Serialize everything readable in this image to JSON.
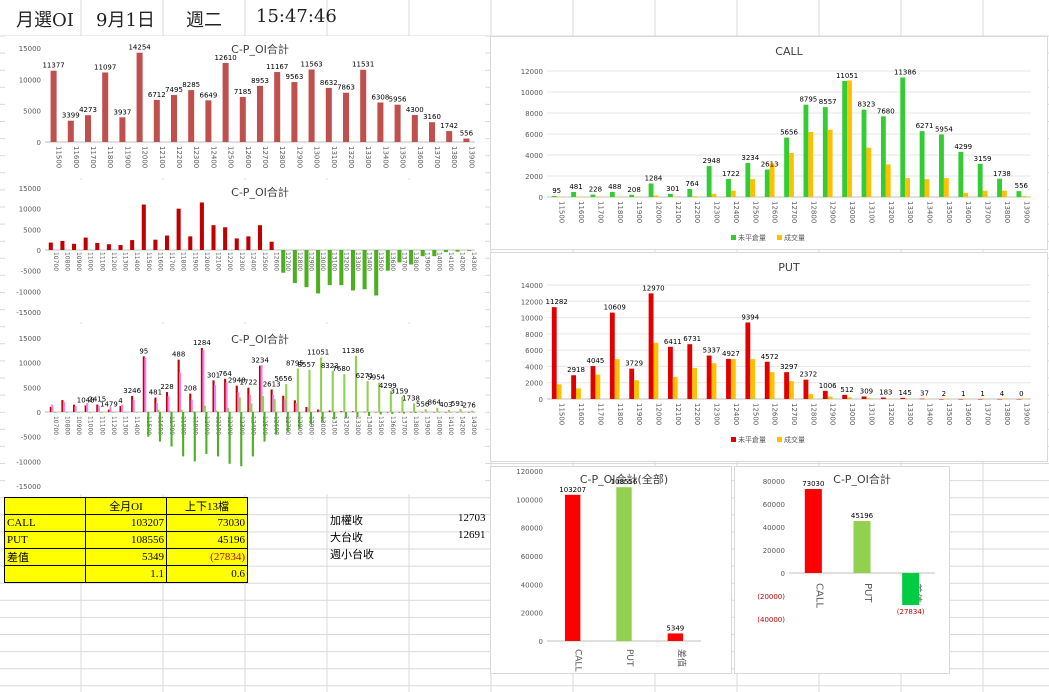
{
  "header": {
    "title": "月選OI",
    "date": "9月1日",
    "weekday": "週二",
    "time": "15:47:46"
  },
  "summary_table": {
    "col_headers": [
      "",
      "全月OI",
      "上下13檔"
    ],
    "rows": [
      {
        "label": "CALL",
        "v1": "103207",
        "v2": "73030"
      },
      {
        "label": "PUT",
        "v1": "108556",
        "v2": "45196"
      },
      {
        "label": "差值",
        "v1": "5349",
        "v2": "(27834)"
      },
      {
        "label": "",
        "v1": "1.1",
        "v2": "0.6"
      }
    ]
  },
  "side_values": [
    {
      "label": "加權收",
      "value": "12703"
    },
    {
      "label": "大台收",
      "value": "12691"
    },
    {
      "label": "週小台收",
      "value": ""
    }
  ],
  "chart_data": [
    {
      "type": "bar",
      "title": "C-P_OI合計",
      "categories": [
        "11500",
        "11600",
        "11700",
        "11800",
        "11900",
        "12000",
        "12100",
        "12200",
        "12300",
        "12400",
        "12500",
        "12600",
        "12700",
        "12800",
        "12900",
        "13000",
        "13100",
        "13200",
        "13300",
        "13400",
        "13500",
        "13600",
        "13700",
        "13800",
        "13900"
      ],
      "values": [
        11377,
        3399,
        4273,
        11097,
        3937,
        14254,
        6712,
        7495,
        8285,
        6649,
        12610,
        7185,
        8953,
        11167,
        9563,
        11563,
        8632,
        7863,
        11531,
        6308,
        5956,
        4300,
        3160,
        1742,
        556
      ],
      "ylim": [
        0,
        15000
      ],
      "yticks": [
        "15000",
        "10000",
        "5000",
        "0"
      ],
      "color": "#c0504d"
    },
    {
      "type": "bar",
      "title": "C-P_OI合計",
      "categories": [
        "10700",
        "10800",
        "10900",
        "11000",
        "11100",
        "11200",
        "11300",
        "11400",
        "11500",
        "11600",
        "11700",
        "11800",
        "11900",
        "12000",
        "12100",
        "12200",
        "12300",
        "12400",
        "12500",
        "12600",
        "12700",
        "12800",
        "12900",
        "13000",
        "13100",
        "13200",
        "13300",
        "13400",
        "13500",
        "13600",
        "13700",
        "13800",
        "13900",
        "14000",
        "14100",
        "14200",
        "14300"
      ],
      "values": [
        1800,
        2200,
        1500,
        3000,
        1700,
        1400,
        1200,
        2400,
        11000,
        2500,
        3500,
        10000,
        3300,
        11500,
        6000,
        5500,
        2800,
        3300,
        6000,
        2000,
        -5500,
        -8000,
        -9000,
        -10500,
        -8500,
        -8500,
        -9800,
        -9500,
        -11000,
        -5000,
        -3000,
        -3500,
        -1500,
        -1500,
        -500,
        -400,
        -200
      ],
      "ylim": [
        -15000,
        15000
      ],
      "yticks": [
        "15000",
        "10000",
        "5000",
        "0",
        "-5000",
        "-10000",
        "-15000"
      ],
      "colors": {
        "positive": "#c00000",
        "negative": "#4caf20"
      }
    },
    {
      "type": "bar",
      "title": "C-P_OI合計",
      "categories": [
        "10700",
        "10800",
        "10900",
        "11000",
        "11100",
        "11200",
        "11300",
        "11400",
        "11500",
        "11600",
        "11700",
        "11800",
        "11900",
        "12000",
        "12100",
        "12200",
        "12300",
        "12400",
        "12500",
        "12600",
        "12700",
        "12800",
        "12900",
        "13000",
        "13100",
        "13200",
        "13300",
        "13400",
        "13500",
        "13600",
        "13700",
        "13800",
        "13900",
        "14000",
        "14100",
        "14200",
        "14300"
      ],
      "series": [
        {
          "values": [
            1048,
            2415,
            1479,
            1324,
            1500,
            479,
            1200,
            3246,
            11282,
            2918,
            4045,
            10609,
            3729,
            12970,
            6411,
            6731,
            5337,
            4927,
            9394,
            4572,
            3297,
            2372,
            1006,
            512,
            309,
            183,
            145,
            37,
            2,
            1,
            1,
            4,
            0,
            0,
            0,
            0,
            0
          ]
        },
        {
          "values": [
            1500,
            2000,
            1200,
            1800,
            1300,
            1000,
            1500,
            2500,
            11000,
            1800,
            3200,
            8000,
            2500,
            12500,
            5500,
            6000,
            4000,
            3500,
            9500,
            3500,
            2500,
            1800,
            800,
            400,
            250,
            150,
            100,
            30,
            2,
            1,
            1,
            3,
            0,
            0,
            0,
            0,
            0
          ]
        },
        {
          "values": [
            0,
            0,
            0,
            0,
            0,
            0,
            0,
            0,
            95,
            481,
            228,
            488,
            208,
            1284,
            301,
            764,
            2948,
            1722,
            3234,
            2613,
            5656,
            8795,
            8557,
            11051,
            8323,
            7680,
            11386,
            6271,
            5954,
            4299,
            3159,
            1738,
            556,
            864,
            403,
            591,
            276
          ]
        },
        {
          "values": [
            0,
            0,
            0,
            0,
            0,
            0,
            0,
            0,
            -5000,
            -6000,
            -7000,
            -9000,
            -10000,
            -8500,
            -9000,
            -10500,
            -11000,
            -9000,
            -6000,
            -4500,
            -4000,
            -3500,
            -2500,
            -2000,
            -1500,
            -1200,
            -1000,
            -800,
            -500,
            -400,
            -300,
            -200,
            -100,
            -100,
            -50,
            -50,
            -30
          ]
        }
      ],
      "labels": [
        "1048",
        "2415",
        "1479",
        "4",
        "3246",
        "95",
        "481",
        "228",
        "488",
        "208",
        "1284",
        "301",
        "764",
        "2948",
        "1722",
        "3234",
        "2613",
        "5656",
        "8795",
        "8557",
        "11051",
        "8323",
        "7680",
        "11386",
        "6271",
        "5954",
        "4299",
        "3159",
        "1738",
        "556",
        "864",
        "403",
        "591",
        "276"
      ],
      "ylim": [
        -15000,
        15000
      ],
      "yticks": [
        "15000",
        "10000",
        "5000",
        "0",
        "-5000",
        "-10000",
        "-15000"
      ],
      "colors": {
        "put": "#c00000",
        "put_traded": "#ee82ee",
        "call": "#92d050",
        "diff": "#4caf20"
      }
    },
    {
      "type": "bar",
      "title": "CALL",
      "categories": [
        "11500",
        "11600",
        "11700",
        "11800",
        "11900",
        "12000",
        "12100",
        "12200",
        "12300",
        "12400",
        "12500",
        "12600",
        "12700",
        "12800",
        "12900",
        "13000",
        "13100",
        "13200",
        "13300",
        "13400",
        "13500",
        "13600",
        "13700",
        "13800",
        "13900"
      ],
      "series": [
        {
          "name": "未平倉量",
          "values": [
            95,
            481,
            228,
            488,
            208,
            1284,
            301,
            764,
            2948,
            1722,
            3234,
            2613,
            5656,
            8795,
            8557,
            11051,
            8323,
            7680,
            11386,
            6271,
            5954,
            4299,
            3159,
            1738,
            556
          ]
        },
        {
          "name": "成交量",
          "values": [
            10,
            50,
            20,
            40,
            30,
            150,
            30,
            80,
            300,
            600,
            1700,
            3200,
            4200,
            6200,
            6400,
            11100,
            4700,
            3100,
            1800,
            1700,
            1800,
            400,
            600,
            600,
            100
          ]
        }
      ],
      "ylim": [
        0,
        12000
      ],
      "yticks": [
        "12000",
        "10000",
        "8000",
        "6000",
        "4000",
        "2000",
        "0"
      ],
      "colors": {
        "oi": "#33cc33",
        "vol": "#ffc000"
      }
    },
    {
      "type": "bar",
      "title": "PUT",
      "categories": [
        "11500",
        "11600",
        "11700",
        "11800",
        "11900",
        "12000",
        "12100",
        "12200",
        "12300",
        "12400",
        "12500",
        "12600",
        "12700",
        "12800",
        "12900",
        "13000",
        "13100",
        "13200",
        "13300",
        "13400",
        "13500",
        "13600",
        "13700",
        "13800",
        "13900"
      ],
      "series": [
        {
          "name": "未平倉量",
          "values": [
            11282,
            2918,
            4045,
            10609,
            3729,
            12970,
            6411,
            6731,
            5337,
            4927,
            9394,
            4572,
            3297,
            2372,
            1006,
            512,
            309,
            183,
            145,
            37,
            2,
            1,
            1,
            4,
            0
          ]
        },
        {
          "name": "成交量",
          "values": [
            1800,
            1300,
            3000,
            4900,
            2300,
            6900,
            2700,
            3800,
            4400,
            4900,
            4900,
            3300,
            2200,
            600,
            300,
            200,
            100,
            50,
            30,
            10,
            2,
            1,
            1,
            2,
            0
          ]
        }
      ],
      "ylim": [
        0,
        14000
      ],
      "yticks": [
        "14000",
        "12000",
        "10000",
        "8000",
        "6000",
        "4000",
        "2000",
        "0"
      ],
      "colors": {
        "oi": "#e00000",
        "vol": "#ffc000"
      }
    },
    {
      "type": "bar",
      "title": "C-P_OI合計(全部)",
      "categories": [
        "CALL",
        "PUT",
        "差值"
      ],
      "values": [
        103207,
        108556,
        5349
      ],
      "labels": [
        "103207",
        "108556",
        "5349"
      ],
      "ylim": [
        0,
        120000
      ],
      "yticks": [
        "120000",
        "100000",
        "80000",
        "60000",
        "40000",
        "20000",
        "0"
      ],
      "colors": [
        "#ff0000",
        "#92d050",
        "#ff0000"
      ]
    },
    {
      "type": "bar",
      "title": "C-P_OI合計",
      "categories": [
        "CALL",
        "PUT",
        "差值"
      ],
      "values": [
        73030,
        45196,
        -27834
      ],
      "labels": [
        "73030",
        "45196",
        "(27834)"
      ],
      "ylim": [
        -40000,
        80000
      ],
      "yticks": [
        "80000",
        "60000",
        "40000",
        "20000",
        "0",
        "(20000)",
        "(40000)"
      ],
      "colors": [
        "#ff0000",
        "#92d050",
        "#00cc44"
      ]
    }
  ]
}
